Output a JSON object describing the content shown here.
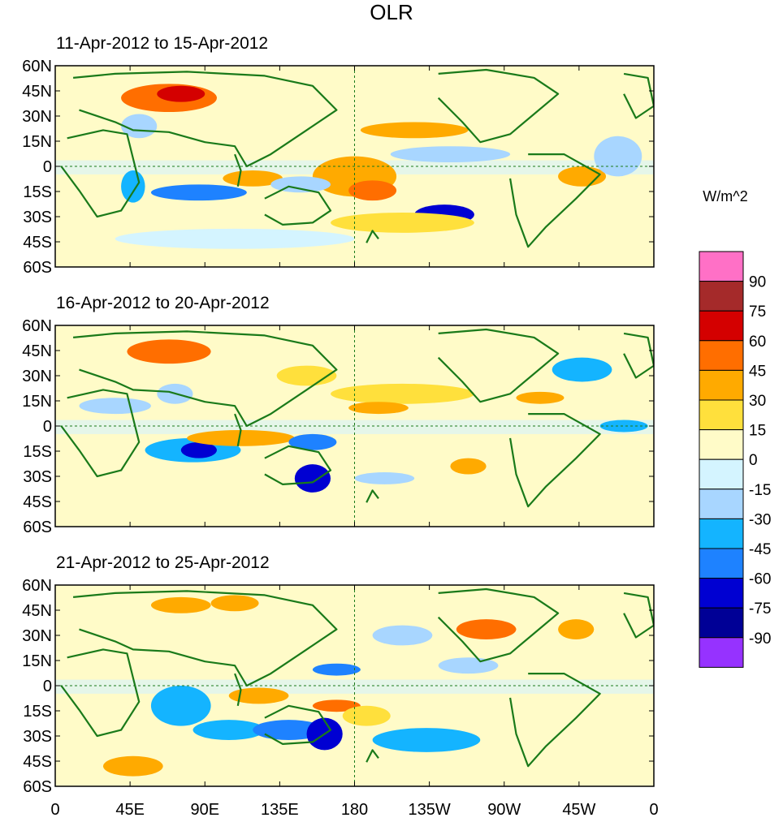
{
  "title": "OLR",
  "panels": [
    {
      "label": "11-Apr-2012 to 15-Apr-2012"
    },
    {
      "label": "16-Apr-2012 to 20-Apr-2012"
    },
    {
      "label": "21-Apr-2012 to 25-Apr-2012"
    }
  ],
  "y_ticks": [
    "60N",
    "45N",
    "30N",
    "15N",
    "0",
    "15S",
    "30S",
    "45S",
    "60S"
  ],
  "x_ticks": [
    "0",
    "45E",
    "90E",
    "135E",
    "180",
    "135W",
    "90W",
    "45W",
    "0"
  ],
  "colorbar": {
    "units": "W/m^2",
    "labels": [
      "90",
      "75",
      "60",
      "45",
      "30",
      "15",
      "0",
      "-15",
      "-30",
      "-45",
      "-60",
      "-75",
      "-90"
    ],
    "colors": [
      "#ff70c6",
      "#a52a2a",
      "#d40000",
      "#ff6e00",
      "#ffaa00",
      "#ffe03c",
      "#fffbc8",
      "#d4f4ff",
      "#a8d6ff",
      "#14b4ff",
      "#1e82ff",
      "#0000d2",
      "#000096",
      "#9632ff"
    ]
  },
  "colors": {
    "coast": "#1a7a1a",
    "reference_line": "#1a7a1a"
  }
}
